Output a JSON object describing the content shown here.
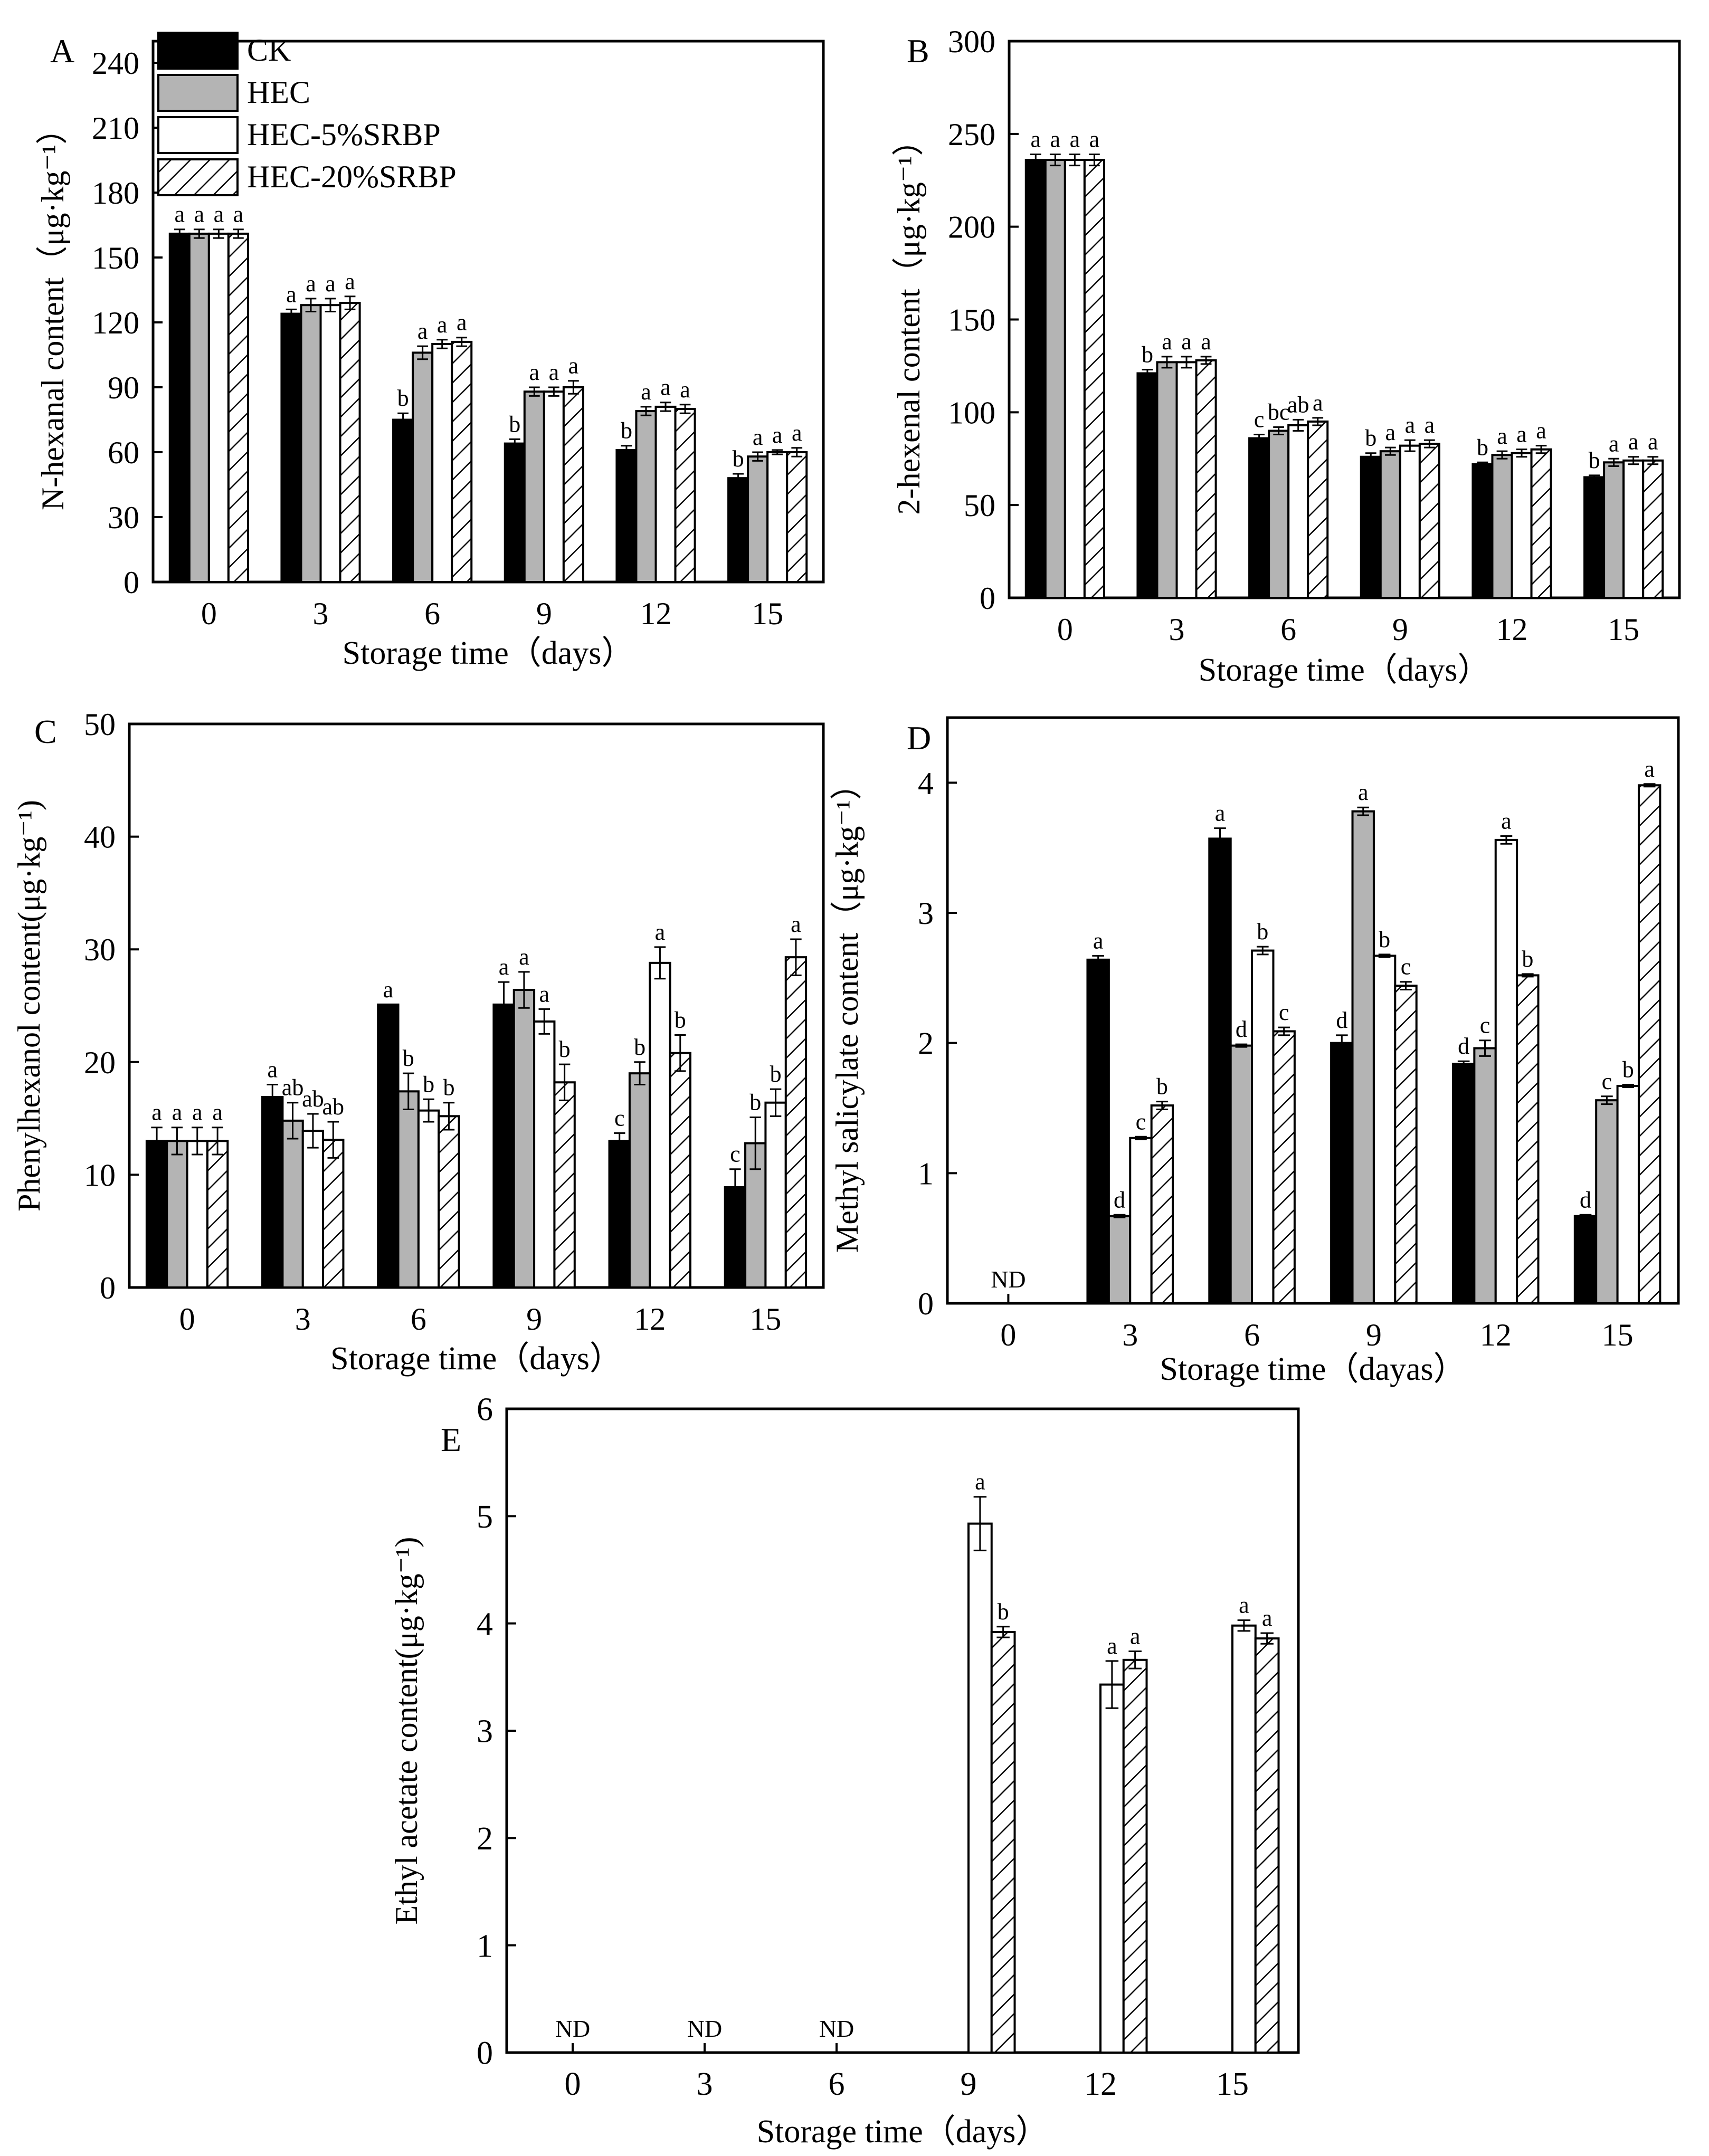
{
  "figure": {
    "legend": [
      {
        "label": "CK",
        "style": "black"
      },
      {
        "label": "HEC",
        "style": "gray"
      },
      {
        "label": "HEC-5%SRBP",
        "style": "white"
      },
      {
        "label": "HEC-20%SRBP",
        "style": "hatch"
      }
    ],
    "x_title": "Storage time（days）",
    "colors": {
      "black": "#000000",
      "gray": "#b4b4b4",
      "white": "#ffffff"
    }
  },
  "chart_data": [
    {
      "panel": "A",
      "type": "bar",
      "ylabel": "N-hexanal content（μg·kg⁻¹）",
      "xlabel": "Storage time（days）",
      "categories": [
        "0",
        "3",
        "6",
        "9",
        "12",
        "15"
      ],
      "ylim": [
        0,
        250
      ],
      "yticks": [
        "0",
        "30",
        "60",
        "90",
        "120",
        "150",
        "180",
        "210",
        "240"
      ],
      "series": [
        {
          "name": "CK",
          "values": [
            161,
            124,
            75,
            64,
            61,
            48
          ],
          "errors": [
            2,
            2,
            3,
            2,
            2,
            2
          ],
          "letters": [
            "a",
            "a",
            "b",
            "b",
            "b",
            "b"
          ]
        },
        {
          "name": "HEC",
          "values": [
            161,
            128,
            106,
            88,
            79,
            58
          ],
          "errors": [
            2,
            3,
            3,
            2,
            2,
            2
          ],
          "letters": [
            "a",
            "a",
            "a",
            "a",
            "a",
            "a"
          ]
        },
        {
          "name": "HEC-5%SRBP",
          "values": [
            161,
            128,
            110,
            88,
            81,
            60
          ],
          "errors": [
            2,
            3,
            2,
            2,
            2,
            1
          ],
          "letters": [
            "a",
            "a",
            "a",
            "a",
            "a",
            "a"
          ]
        },
        {
          "name": "HEC-20%SRBP",
          "values": [
            161,
            129,
            111,
            90,
            80,
            60
          ],
          "errors": [
            2,
            3,
            2,
            3,
            2,
            2
          ],
          "letters": [
            "a",
            "a",
            "a",
            "a",
            "a",
            "a"
          ]
        }
      ]
    },
    {
      "panel": "B",
      "type": "bar",
      "ylabel": "2-hexenal content（μg·kg⁻¹）",
      "xlabel": "Storage time（days）",
      "categories": [
        "0",
        "3",
        "6",
        "9",
        "12",
        "15"
      ],
      "ylim": [
        0,
        300
      ],
      "yticks": [
        "0",
        "50",
        "100",
        "150",
        "200",
        "250",
        "300"
      ],
      "series": [
        {
          "name": "CK",
          "values": [
            236,
            121,
            86,
            76,
            72,
            65
          ],
          "errors": [
            3,
            2,
            2,
            2,
            1,
            1
          ],
          "letters": [
            "a",
            "b",
            "c",
            "b",
            "b",
            "b"
          ]
        },
        {
          "name": "HEC",
          "values": [
            236,
            127,
            90,
            79,
            77,
            73
          ],
          "errors": [
            3,
            3,
            2,
            2,
            2,
            2
          ],
          "letters": [
            "a",
            "a",
            "bc",
            "a",
            "a",
            "a"
          ]
        },
        {
          "name": "HEC-5%SRBP",
          "values": [
            236,
            127,
            93,
            82,
            78,
            74
          ],
          "errors": [
            3,
            3,
            3,
            3,
            2,
            2
          ],
          "letters": [
            "a",
            "a",
            "ab",
            "a",
            "a",
            "a"
          ]
        },
        {
          "name": "HEC-20%SRBP",
          "values": [
            236,
            128,
            95,
            83,
            80,
            74
          ],
          "errors": [
            3,
            2,
            2,
            2,
            2,
            2
          ],
          "letters": [
            "a",
            "a",
            "a",
            "a",
            "a",
            "a"
          ]
        }
      ]
    },
    {
      "panel": "C",
      "type": "bar",
      "ylabel": "Phenylhexanol content(μg·kg⁻¹)",
      "xlabel": "Storage time（days）",
      "categories": [
        "0",
        "3",
        "6",
        "9",
        "12",
        "15"
      ],
      "ylim": [
        0,
        50
      ],
      "yticks": [
        "0",
        "10",
        "20",
        "30",
        "40",
        "50"
      ],
      "series": [
        {
          "name": "CK",
          "values": [
            13,
            16.9,
            25.1,
            25.1,
            13,
            8.9
          ],
          "errors": [
            1.2,
            1.1,
            0,
            2,
            0.7,
            1.6
          ],
          "letters": [
            "a",
            "a",
            "a",
            "a",
            "c",
            "c"
          ]
        },
        {
          "name": "HEC",
          "values": [
            13,
            14.8,
            17.4,
            26.4,
            19,
            12.8
          ],
          "errors": [
            1.2,
            1.6,
            1.6,
            1.6,
            1,
            2.3
          ],
          "letters": [
            "a",
            "ab",
            "b",
            "a",
            "b",
            "b"
          ]
        },
        {
          "name": "HEC-5%SRBP",
          "values": [
            13,
            13.9,
            15.7,
            23.6,
            28.8,
            16.4
          ],
          "errors": [
            1.2,
            1.5,
            1,
            1.1,
            1.4,
            1.2
          ],
          "letters": [
            "a",
            "ab",
            "b",
            "a",
            "a",
            "b"
          ]
        },
        {
          "name": "HEC-20%SRBP",
          "values": [
            13,
            13.1,
            15.2,
            18.2,
            20.8,
            29.3
          ],
          "errors": [
            1.2,
            1.6,
            1.2,
            1.6,
            1.6,
            1.6
          ],
          "letters": [
            "a",
            "ab",
            "b",
            "b",
            "b",
            "a"
          ]
        }
      ]
    },
    {
      "panel": "D",
      "type": "bar",
      "ylabel": "Methyl salicylate content（μg·kg⁻¹）",
      "xlabel": "Storage time（dayas）",
      "categories": [
        "0",
        "3",
        "6",
        "9",
        "12",
        "15"
      ],
      "ylim": [
        0,
        4.5
      ],
      "yticks": [
        "0",
        "1",
        "2",
        "3",
        "4"
      ],
      "nd_text": "ND",
      "nd_categories": [
        "0"
      ],
      "series": [
        {
          "name": "CK",
          "values": [
            null,
            2.64,
            3.57,
            2,
            1.84,
            0.67
          ],
          "errors": [
            0,
            0.03,
            0.08,
            0.06,
            0.02,
            0.01
          ],
          "letters": [
            "",
            "a",
            "a",
            "d",
            "d",
            "d"
          ]
        },
        {
          "name": "HEC",
          "values": [
            null,
            0.67,
            1.98,
            3.78,
            1.96,
            1.56
          ],
          "errors": [
            0,
            0.01,
            0.01,
            0.03,
            0.06,
            0.03
          ],
          "letters": [
            "",
            "d",
            "d",
            "a",
            "c",
            "c"
          ]
        },
        {
          "name": "HEC-5%SRBP",
          "values": [
            null,
            1.27,
            2.71,
            2.67,
            3.56,
            1.67
          ],
          "errors": [
            0,
            0.01,
            0.03,
            0.01,
            0.03,
            0.01
          ],
          "letters": [
            "",
            "c",
            "b",
            "b",
            "a",
            "b"
          ]
        },
        {
          "name": "HEC-20%SRBP",
          "values": [
            null,
            1.52,
            2.09,
            2.44,
            2.52,
            3.98
          ],
          "errors": [
            0,
            0.03,
            0.03,
            0.03,
            0.01,
            0.01
          ],
          "letters": [
            "",
            "b",
            "c",
            "c",
            "b",
            "a"
          ]
        }
      ]
    },
    {
      "panel": "E",
      "type": "bar",
      "ylabel": "Ethyl acetate content(μg·kg⁻¹)",
      "xlabel": "Storage time（days）",
      "categories": [
        "0",
        "3",
        "6",
        "9",
        "12",
        "15"
      ],
      "ylim": [
        0,
        6
      ],
      "yticks": [
        "0",
        "1",
        "2",
        "3",
        "4",
        "5",
        "6"
      ],
      "nd_text": "ND",
      "nd_categories": [
        "0",
        "3",
        "6"
      ],
      "series": [
        {
          "name": "CK",
          "values": [
            null,
            null,
            null,
            null,
            null,
            null
          ],
          "errors": [
            0,
            0,
            0,
            0,
            0,
            0
          ],
          "letters": [
            "",
            "",
            "",
            "",
            "",
            ""
          ]
        },
        {
          "name": "HEC",
          "values": [
            null,
            null,
            null,
            null,
            null,
            null
          ],
          "errors": [
            0,
            0,
            0,
            0,
            0,
            0
          ],
          "letters": [
            "",
            "",
            "",
            "",
            "",
            ""
          ]
        },
        {
          "name": "HEC-5%SRBP",
          "values": [
            null,
            null,
            null,
            4.93,
            3.43,
            3.98
          ],
          "errors": [
            0,
            0,
            0,
            0.25,
            0.22,
            0.05
          ],
          "letters": [
            "",
            "",
            "",
            "a",
            "a",
            "a"
          ]
        },
        {
          "name": "HEC-20%SRBP",
          "values": [
            null,
            null,
            null,
            3.92,
            3.66,
            3.86
          ],
          "errors": [
            0,
            0,
            0,
            0.05,
            0.08,
            0.05
          ],
          "letters": [
            "",
            "",
            "",
            "b",
            "a",
            "a"
          ]
        }
      ]
    }
  ]
}
